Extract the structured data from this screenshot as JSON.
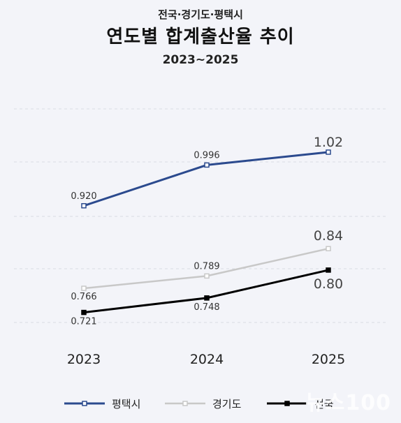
{
  "header": {
    "supertitle": "전국·경기도·평택시",
    "title": "연도별 합계출산율 추이",
    "subtitle": "2023~2025"
  },
  "watermark": "뉴스100",
  "colors": {
    "pyeongtaek": "#2b4a8e",
    "gyeonggi": "#c8c8c8",
    "national": "#000000",
    "background": "#f3f4f9"
  },
  "chart_data": {
    "type": "line",
    "categories": [
      "2023",
      "2024",
      "2025"
    ],
    "series": [
      {
        "name": "평택시",
        "values": [
          0.92,
          0.996,
          1.02
        ],
        "labels": [
          "0.920",
          "0.996",
          "1.02"
        ]
      },
      {
        "name": "경기도",
        "values": [
          0.766,
          0.789,
          0.84
        ],
        "labels": [
          "0.766",
          "0.789",
          "0.84"
        ]
      },
      {
        "name": "전국",
        "values": [
          0.721,
          0.748,
          0.8
        ],
        "labels": [
          "0.721",
          "0.748",
          "0.80"
        ]
      }
    ],
    "title": "연도별 합계출산율 추이",
    "grid": true,
    "legend": "bottom"
  }
}
